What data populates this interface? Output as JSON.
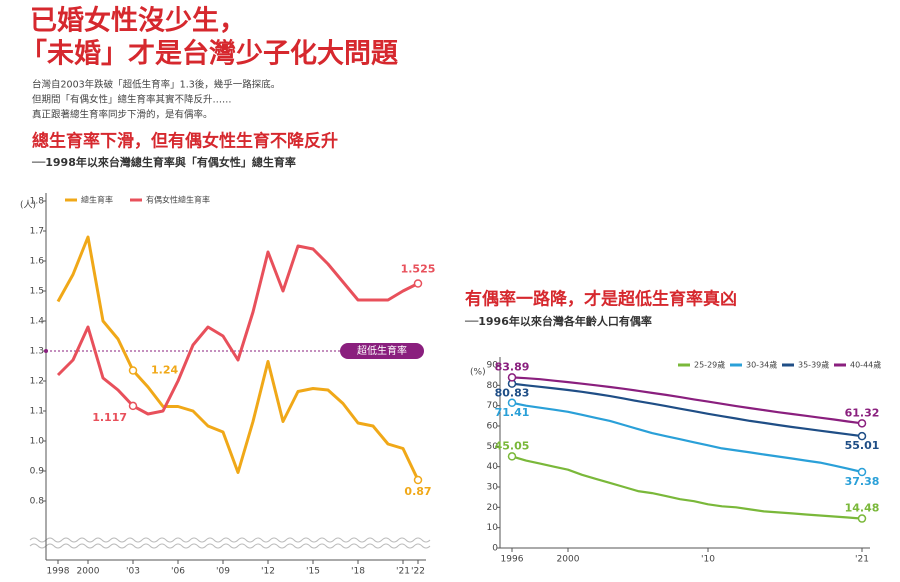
{
  "headline": {
    "title_lines": [
      "已婚女性沒少生，",
      "「未婚」才是台灣少子化大問題"
    ],
    "intro_lines": [
      "台灣自2003年跌破「超低生育率」1.3後，幾乎一路探底。",
      "但期間「有偶女性」總生育率其實不降反升……",
      "真正跟著總生育率同步下滑的，是有偶率。"
    ]
  },
  "chart_data": [
    {
      "type": "line",
      "title": "總生育率下滑，但有偶女性生育不降反升",
      "subtitle": "──1998年以來台灣總生育率與「有偶女性」總生育率",
      "y_label": "(人)",
      "x": [
        1998,
        1999,
        2000,
        2001,
        2002,
        2003,
        2004,
        2005,
        2006,
        2007,
        2008,
        2009,
        2010,
        2011,
        2012,
        2013,
        2014,
        2015,
        2016,
        2017,
        2018,
        2019,
        2020,
        2021,
        2022
      ],
      "series": [
        {
          "name": "總生育率",
          "color": "#f0a818",
          "values": [
            1.465,
            1.555,
            1.68,
            1.4,
            1.34,
            1.235,
            1.18,
            1.115,
            1.115,
            1.1,
            1.05,
            1.03,
            0.895,
            1.065,
            1.265,
            1.065,
            1.165,
            1.175,
            1.17,
            1.125,
            1.06,
            1.05,
            0.99,
            0.975,
            0.87
          ],
          "value_labels": [
            null,
            null,
            null,
            null,
            null,
            "1.24",
            null,
            null,
            null,
            null,
            null,
            null,
            null,
            null,
            null,
            null,
            null,
            null,
            null,
            null,
            null,
            null,
            null,
            null,
            "0.87"
          ]
        },
        {
          "name": "有偶女性總生育率",
          "color": "#e8505b",
          "values": [
            1.22,
            1.27,
            1.38,
            1.21,
            1.17,
            1.117,
            1.09,
            1.1,
            1.2,
            1.32,
            1.38,
            1.35,
            1.27,
            1.43,
            1.63,
            1.5,
            1.65,
            1.64,
            1.59,
            1.53,
            1.47,
            1.47,
            1.47,
            1.5,
            1.525
          ],
          "value_labels": [
            null,
            null,
            null,
            null,
            null,
            "1.117",
            null,
            null,
            null,
            null,
            null,
            null,
            null,
            null,
            null,
            null,
            null,
            null,
            null,
            null,
            null,
            null,
            null,
            null,
            "1.525"
          ]
        }
      ],
      "reference_line": {
        "value": 1.3,
        "label": "超低生育率",
        "color": "#8a1f7e"
      },
      "xlim": [
        1998,
        2022
      ],
      "xticks": [
        1998,
        2000,
        {
          "value": 2003,
          "label": "'03"
        },
        {
          "value": 2006,
          "label": "'06"
        },
        {
          "value": 2009,
          "label": "'09"
        },
        {
          "value": 2012,
          "label": "'12"
        },
        {
          "value": 2015,
          "label": "'15"
        },
        {
          "value": 2018,
          "label": "'18"
        },
        {
          "value": 2021,
          "label": "'21"
        },
        {
          "value": 2022,
          "label": "'22"
        }
      ],
      "ylim": [
        0.72,
        1.8
      ],
      "yticks": [
        0.8,
        0.9,
        {
          "value": 1,
          "label": "1.0"
        },
        1.1,
        1.2,
        1.3,
        1.4,
        1.5,
        1.6,
        1.7,
        1.8
      ],
      "grid": false,
      "legend": "top"
    },
    {
      "type": "line",
      "title": "有偶率一路降，才是超低生育率真凶",
      "subtitle": "──1996年以來台灣各年齡人口有偶率",
      "y_label": "(%)",
      "x": [
        1996,
        1997,
        1998,
        1999,
        2000,
        2001,
        2002,
        2003,
        2004,
        2005,
        2006,
        2007,
        2008,
        2009,
        2010,
        2011,
        2012,
        2013,
        2014,
        2015,
        2016,
        2017,
        2018,
        2019,
        2020,
        2021
      ],
      "series": [
        {
          "name": "25-29歲",
          "color": "#7ab83a",
          "values": [
            45.05,
            43,
            41.5,
            40,
            38.5,
            36,
            34,
            32,
            30,
            28,
            27,
            25.5,
            24,
            23,
            21.5,
            20.5,
            20,
            19,
            18,
            17.5,
            17,
            16.5,
            16,
            15.5,
            15,
            14.48
          ],
          "value_labels": [
            "45.05",
            null,
            null,
            null,
            null,
            null,
            null,
            null,
            null,
            null,
            null,
            null,
            null,
            null,
            null,
            null,
            null,
            null,
            null,
            null,
            null,
            null,
            null,
            null,
            null,
            "14.48"
          ]
        },
        {
          "name": "30-34歲",
          "color": "#2aa0d8",
          "values": [
            71.41,
            70,
            69,
            68,
            67,
            65.5,
            64,
            62.5,
            60.5,
            58.5,
            56.5,
            55,
            53.5,
            52,
            50.5,
            49,
            48,
            47,
            46,
            45,
            44,
            43,
            42,
            40.5,
            39,
            37.38
          ],
          "value_labels": [
            "71.41",
            null,
            null,
            null,
            null,
            null,
            null,
            null,
            null,
            null,
            null,
            null,
            null,
            null,
            null,
            null,
            null,
            null,
            null,
            null,
            null,
            null,
            null,
            null,
            null,
            "37.38"
          ]
        },
        {
          "name": "35-39歲",
          "color": "#1f4e86",
          "values": [
            80.83,
            80,
            79.3,
            78.5,
            77.7,
            76.8,
            75.8,
            74.7,
            73.5,
            72.2,
            71,
            69.8,
            68.5,
            67.3,
            66,
            64.8,
            63.7,
            62.5,
            61.5,
            60.5,
            59.5,
            58.6,
            57.7,
            56.8,
            55.9,
            55.01
          ],
          "value_labels": [
            "80.83",
            null,
            null,
            null,
            null,
            null,
            null,
            null,
            null,
            null,
            null,
            null,
            null,
            null,
            null,
            null,
            null,
            null,
            null,
            null,
            null,
            null,
            null,
            null,
            null,
            "55.01"
          ]
        },
        {
          "name": "40-44歲",
          "color": "#8a1f7e",
          "values": [
            83.89,
            83.5,
            83,
            82.3,
            81.6,
            80.8,
            80,
            79.2,
            78.3,
            77.3,
            76.3,
            75.3,
            74.2,
            73.1,
            72,
            70.9,
            69.8,
            68.8,
            67.8,
            66.8,
            65.9,
            65,
            64.1,
            63.2,
            62.2,
            61.32
          ],
          "value_labels": [
            "83.89",
            null,
            null,
            null,
            null,
            null,
            null,
            null,
            null,
            null,
            null,
            null,
            null,
            null,
            null,
            null,
            null,
            null,
            null,
            null,
            null,
            null,
            null,
            null,
            null,
            "61.32"
          ]
        }
      ],
      "xlim": [
        1996,
        2021
      ],
      "xticks": [
        1996,
        2000,
        {
          "value": 2010,
          "label": "'10"
        },
        {
          "value": 2021,
          "label": "'21"
        }
      ],
      "ylim": [
        0,
        90
      ],
      "yticks": [
        0,
        10,
        20,
        30,
        40,
        50,
        60,
        70,
        80,
        90
      ],
      "grid": false,
      "legend": "top-right"
    }
  ]
}
